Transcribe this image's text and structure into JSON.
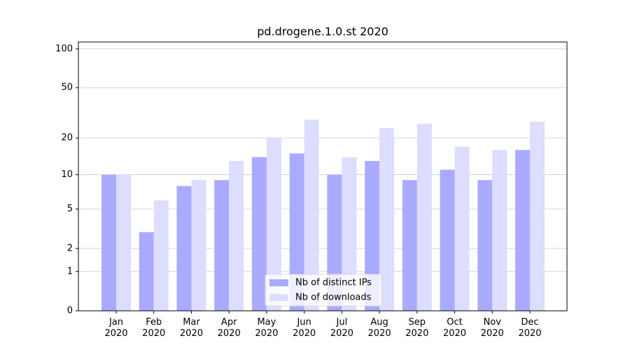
{
  "chart_data": {
    "type": "bar",
    "title": "pd.drogene.1.0.st 2020",
    "categories": [
      "Jan 2020",
      "Feb 2020",
      "Mar 2020",
      "Apr 2020",
      "May 2020",
      "Jun 2020",
      "Jul 2020",
      "Aug 2020",
      "Sep 2020",
      "Oct 2020",
      "Nov 2020",
      "Dec 2020"
    ],
    "series": [
      {
        "name": "Nb of distinct IPs",
        "color": "#aaaaff",
        "values": [
          10,
          3,
          8,
          9,
          14,
          15,
          10,
          13,
          9,
          11,
          9,
          16
        ]
      },
      {
        "name": "Nb of downloads",
        "color": "#ddddff",
        "values": [
          10,
          6,
          9,
          13,
          20,
          28,
          14,
          24,
          26,
          17,
          16,
          27
        ]
      }
    ],
    "yscale": "log1p",
    "ylim": [
      0,
      113
    ],
    "yticks": [
      0,
      1,
      2,
      5,
      10,
      20,
      50,
      100
    ],
    "grid": true,
    "legend": "lower center"
  }
}
